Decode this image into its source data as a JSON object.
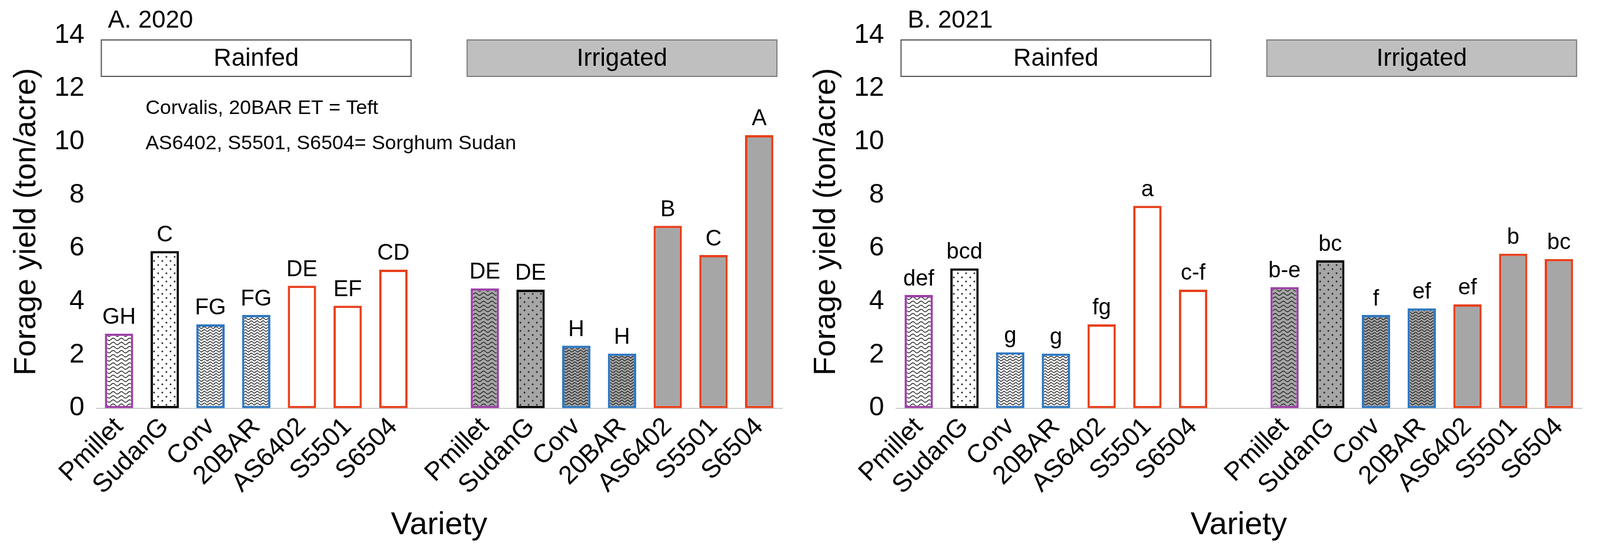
{
  "chart_data": [
    {
      "type": "bar",
      "title": "A. 2020",
      "x_label": "Variety",
      "y_label": "Forage yield (ton/acre)",
      "headers": [
        "Rainfed",
        "Irrigated"
      ],
      "notes": [
        "Corvalis, 20BAR ET = Teft",
        "AS6402, S5501, S6504= Sorghum Sudan"
      ],
      "categories": [
        "Pmillet",
        "SudanG",
        "Corv",
        "20BAR",
        "AS6402",
        "S5501",
        "S6504",
        null,
        "Pmillet",
        "SudanG",
        "Corv",
        "20BAR",
        "AS6402",
        "S5501",
        "S6504"
      ],
      "values": [
        2.8,
        5.9,
        3.15,
        3.5,
        4.6,
        3.85,
        5.2,
        null,
        4.5,
        4.45,
        2.35,
        2.05,
        6.85,
        5.75,
        10.25
      ],
      "bar_labels": [
        "GH",
        "C",
        "FG",
        "FG",
        "DE",
        "EF",
        "CD",
        null,
        "DE",
        "DE",
        "H",
        "H",
        "B",
        "C",
        "A"
      ],
      "colors": [
        "#9e3fa8",
        "#000000",
        "#2e78c2",
        "#2e78c2",
        "#e8401c",
        "#e8401c",
        "#e8401c",
        null,
        "#9e3fa8",
        "#000000",
        "#2e78c2",
        "#2e78c2",
        "#e8401c",
        "#e8401c",
        "#e8401c"
      ],
      "ylim": [
        0,
        14
      ],
      "yticks": [
        0,
        2,
        4,
        6,
        8,
        10,
        12,
        14
      ],
      "grid": false
    },
    {
      "type": "bar",
      "title": "B. 2021",
      "x_label": "Variety",
      "y_label": "Forage yield (ton/acre)",
      "headers": [
        "Rainfed",
        "Irrigated"
      ],
      "categories": [
        "Pmillet",
        "SudanG",
        "Corv",
        "20BAR",
        "AS6402",
        "S5501",
        "S6504",
        null,
        "Pmillet",
        "SudanG",
        "Corv",
        "20BAR",
        "AS6402",
        "S5501",
        "S6504"
      ],
      "values": [
        4.25,
        5.25,
        2.1,
        2.05,
        3.15,
        7.6,
        4.45,
        null,
        4.55,
        5.55,
        3.5,
        3.75,
        3.9,
        5.8,
        5.6
      ],
      "bar_labels": [
        "def",
        "bcd",
        "g",
        "g",
        "fg",
        "a",
        "c-f",
        null,
        "b-e",
        "bc",
        "f",
        "ef",
        "ef",
        "b",
        "bc"
      ],
      "colors": [
        "#9e3fa8",
        "#000000",
        "#2e78c2",
        "#2e78c2",
        "#e8401c",
        "#e8401c",
        "#e8401c",
        null,
        "#9e3fa8",
        "#000000",
        "#2e78c2",
        "#2e78c2",
        "#e8401c",
        "#e8401c",
        "#e8401c"
      ],
      "ylim": [
        0,
        14
      ],
      "yticks": [
        0,
        2,
        4,
        6,
        8,
        10,
        12,
        14
      ],
      "grid": false
    }
  ]
}
